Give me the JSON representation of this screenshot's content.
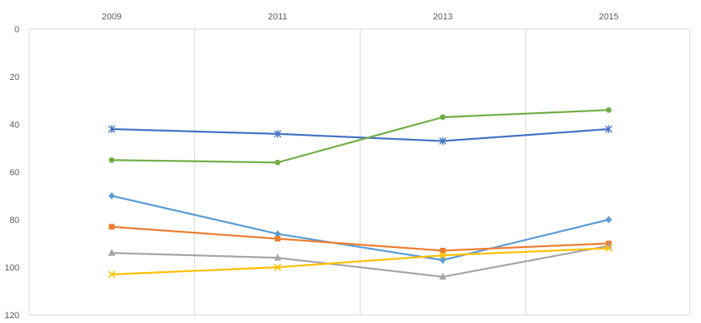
{
  "chart_data": {
    "type": "line",
    "x": [
      "2009",
      "2011",
      "2013",
      "2015"
    ],
    "xaxis_position": "top",
    "yaxis": {
      "inverted": true,
      "ylim": [
        0,
        120
      ],
      "ticks": [
        0,
        20,
        40,
        60,
        80,
        100,
        120
      ]
    },
    "grid": {
      "vertical": true,
      "horizontal": false
    },
    "series": [
      {
        "values": [
          42,
          44,
          47,
          42
        ],
        "color": "#4472C4",
        "marker": "star"
      },
      {
        "values": [
          55,
          56,
          37,
          34
        ],
        "color": "#70AD47",
        "marker": "circle"
      },
      {
        "values": [
          70,
          86,
          97,
          80
        ],
        "color": "#5B9BD5",
        "marker": "diamond"
      },
      {
        "values": [
          83,
          88,
          93,
          90
        ],
        "color": "#ED7D31",
        "marker": "square"
      },
      {
        "values": [
          94,
          96,
          104,
          91
        ],
        "color": "#A5A5A5",
        "marker": "triangle"
      },
      {
        "values": [
          103,
          100,
          95,
          92
        ],
        "color": "#FFC000",
        "marker": "x"
      }
    ]
  }
}
